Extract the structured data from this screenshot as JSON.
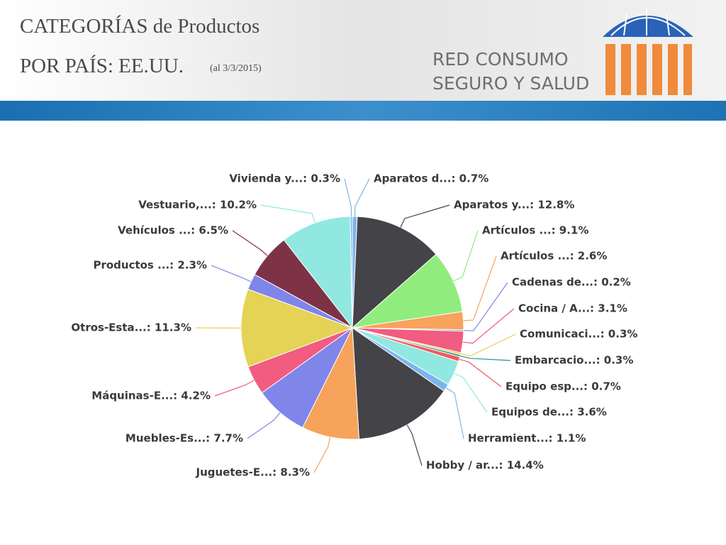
{
  "header": {
    "title": "CATEGORÍAS de Productos",
    "subtitle": "POR PAÍS: EE.UU.",
    "date": "(al 3/3/2015)",
    "logo_line1": "RED CONSUMO",
    "logo_line2": "SEGURO Y SALUD"
  },
  "chart_data": {
    "type": "pie",
    "values": [
      0.7,
      12.8,
      9.1,
      2.6,
      0.2,
      3.1,
      0.3,
      0.3,
      0.7,
      3.6,
      1.1,
      14.4,
      8.3,
      7.7,
      4.2,
      11.3,
      2.3,
      6.5,
      10.2,
      0.3
    ],
    "value_labels": [
      "Aparatos d...: 0.7%",
      "Aparatos y...: 12.8%",
      "Artículos ...: 9.1%",
      "Artículos ...: 2.6%",
      "Cadenas de...: 0.2%",
      "Cocina / A...: 3.1%",
      "Comunicaci...: 0.3%",
      "Embarcacio...: 0.3%",
      "Equipo esp...: 0.7%",
      "Equipos de...: 3.6%",
      "Herramient...: 1.1%",
      "Hobby / ar...: 14.4%",
      "Juguetes-E...: 8.3%",
      "Muebles-Es...: 7.7%",
      "Máquinas-E...: 4.2%",
      "Otros-Esta...: 11.3%",
      "Productos ...: 2.3%",
      "Vehículos ...: 6.5%",
      "Vestuario,...: 10.2%",
      "Vivienda y...: 0.3%"
    ],
    "colors": [
      "#7cb5ec",
      "#434348",
      "#90ed7d",
      "#f7a35c",
      "#8085e9",
      "#f15c80",
      "#e4d354",
      "#2b908f",
      "#f45b5b",
      "#91e8e1",
      "#7cb5ec",
      "#434348",
      "#f7a35c",
      "#8085e9",
      "#f15c80",
      "#e4d354",
      "#8085e9",
      "#7e3245",
      "#91e8e1",
      "#7cb5ec"
    ]
  }
}
